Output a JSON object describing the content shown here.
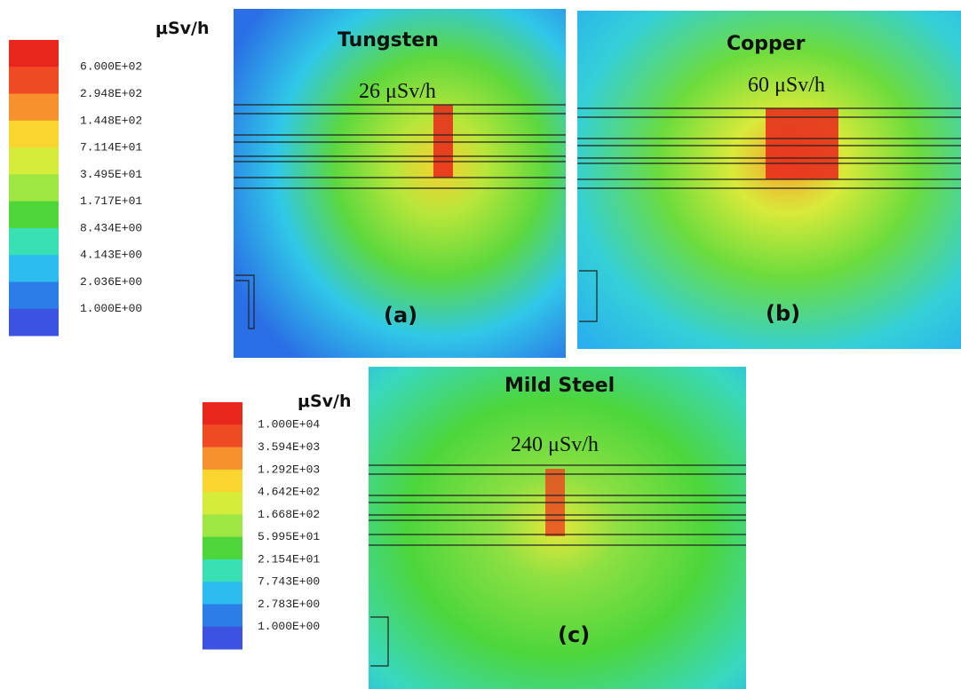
{
  "legend_top": {
    "unit": "μSv/h",
    "labels": [
      "6.000E+02",
      "2.948E+02",
      "1.448E+02",
      "7.114E+01",
      "3.495E+01",
      "1.717E+01",
      "8.434E+00",
      "4.143E+00",
      "2.036E+00",
      "1.000E+00"
    ]
  },
  "legend_bottom": {
    "unit": "μSv/h",
    "labels": [
      "1.000E+04",
      "3.594E+03",
      "1.292E+03",
      "4.642E+02",
      "1.668E+02",
      "5.995E+01",
      "2.154E+01",
      "7.743E+00",
      "2.783E+00",
      "1.000E+00"
    ]
  },
  "panels": [
    {
      "title": "Tungsten",
      "dose": "26 μSv/h",
      "label": "(a)"
    },
    {
      "title": "Copper",
      "dose": "60 μSv/h",
      "label": "(b)"
    },
    {
      "title": "Mild Steel",
      "dose": "240 μSv/h",
      "label": "(c)"
    }
  ]
}
